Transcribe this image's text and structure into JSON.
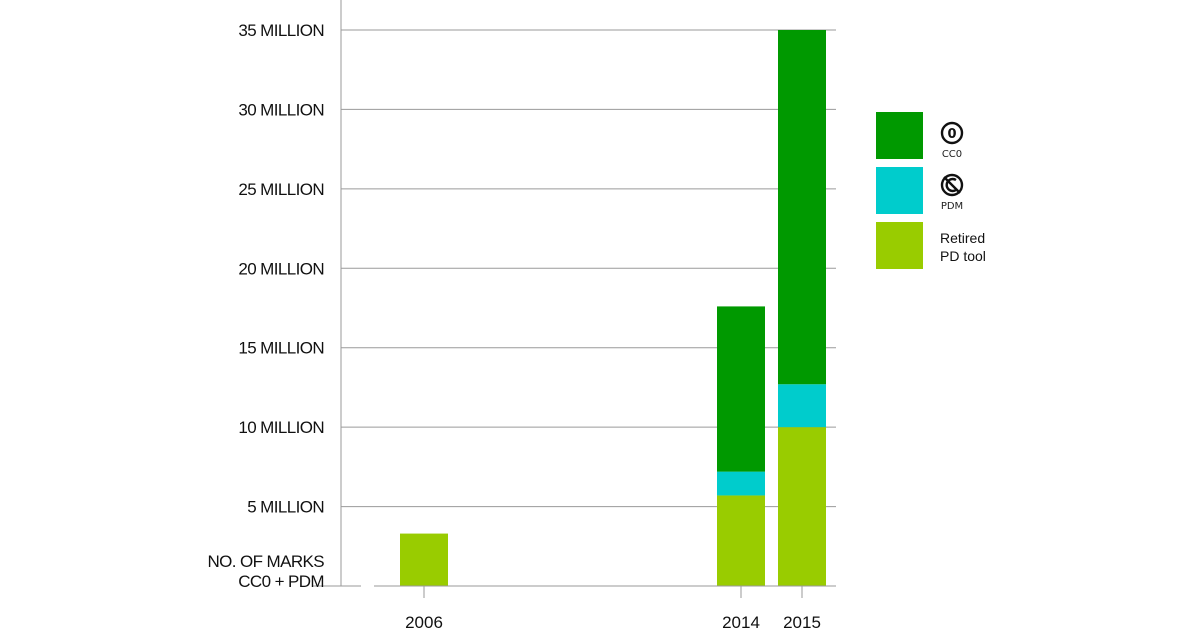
{
  "chart_data": {
    "type": "bar",
    "stacked": true,
    "categories": [
      "2006",
      "2014",
      "2015"
    ],
    "series": [
      {
        "name": "Retired PD tool",
        "color": "#99cc00",
        "values": [
          3.3,
          5.7,
          10.0
        ]
      },
      {
        "name": "PDM",
        "color": "#00cccc",
        "values": [
          0,
          1.5,
          2.7
        ]
      },
      {
        "name": "CC0",
        "color": "#009900",
        "values": [
          0,
          10.4,
          22.3
        ]
      }
    ],
    "ylim": [
      0,
      35
    ],
    "yticks": [
      5,
      10,
      15,
      20,
      25,
      30,
      35
    ],
    "ytick_labels": [
      "5 MILLION",
      "10 MILLION",
      "15 MILLION",
      "20 MILLION",
      "25 MILLION",
      "30 MILLION",
      "35 MILLION"
    ],
    "ylabel_lines": [
      "NO. OF MARKS",
      "CC0 + PDM"
    ],
    "grid": true,
    "legend_position": "right",
    "legend": [
      {
        "color": "#009900",
        "icon": "cc0-icon",
        "icon_symbol": "0",
        "label_lines": [
          "CC0"
        ]
      },
      {
        "color": "#00cccc",
        "icon": "pdm-icon",
        "icon_symbol": "",
        "label_lines": [
          "PDM"
        ]
      },
      {
        "color": "#99cc00",
        "icon": "none",
        "icon_symbol": "",
        "label_lines": [
          "Retired",
          "PD tool"
        ]
      }
    ]
  }
}
